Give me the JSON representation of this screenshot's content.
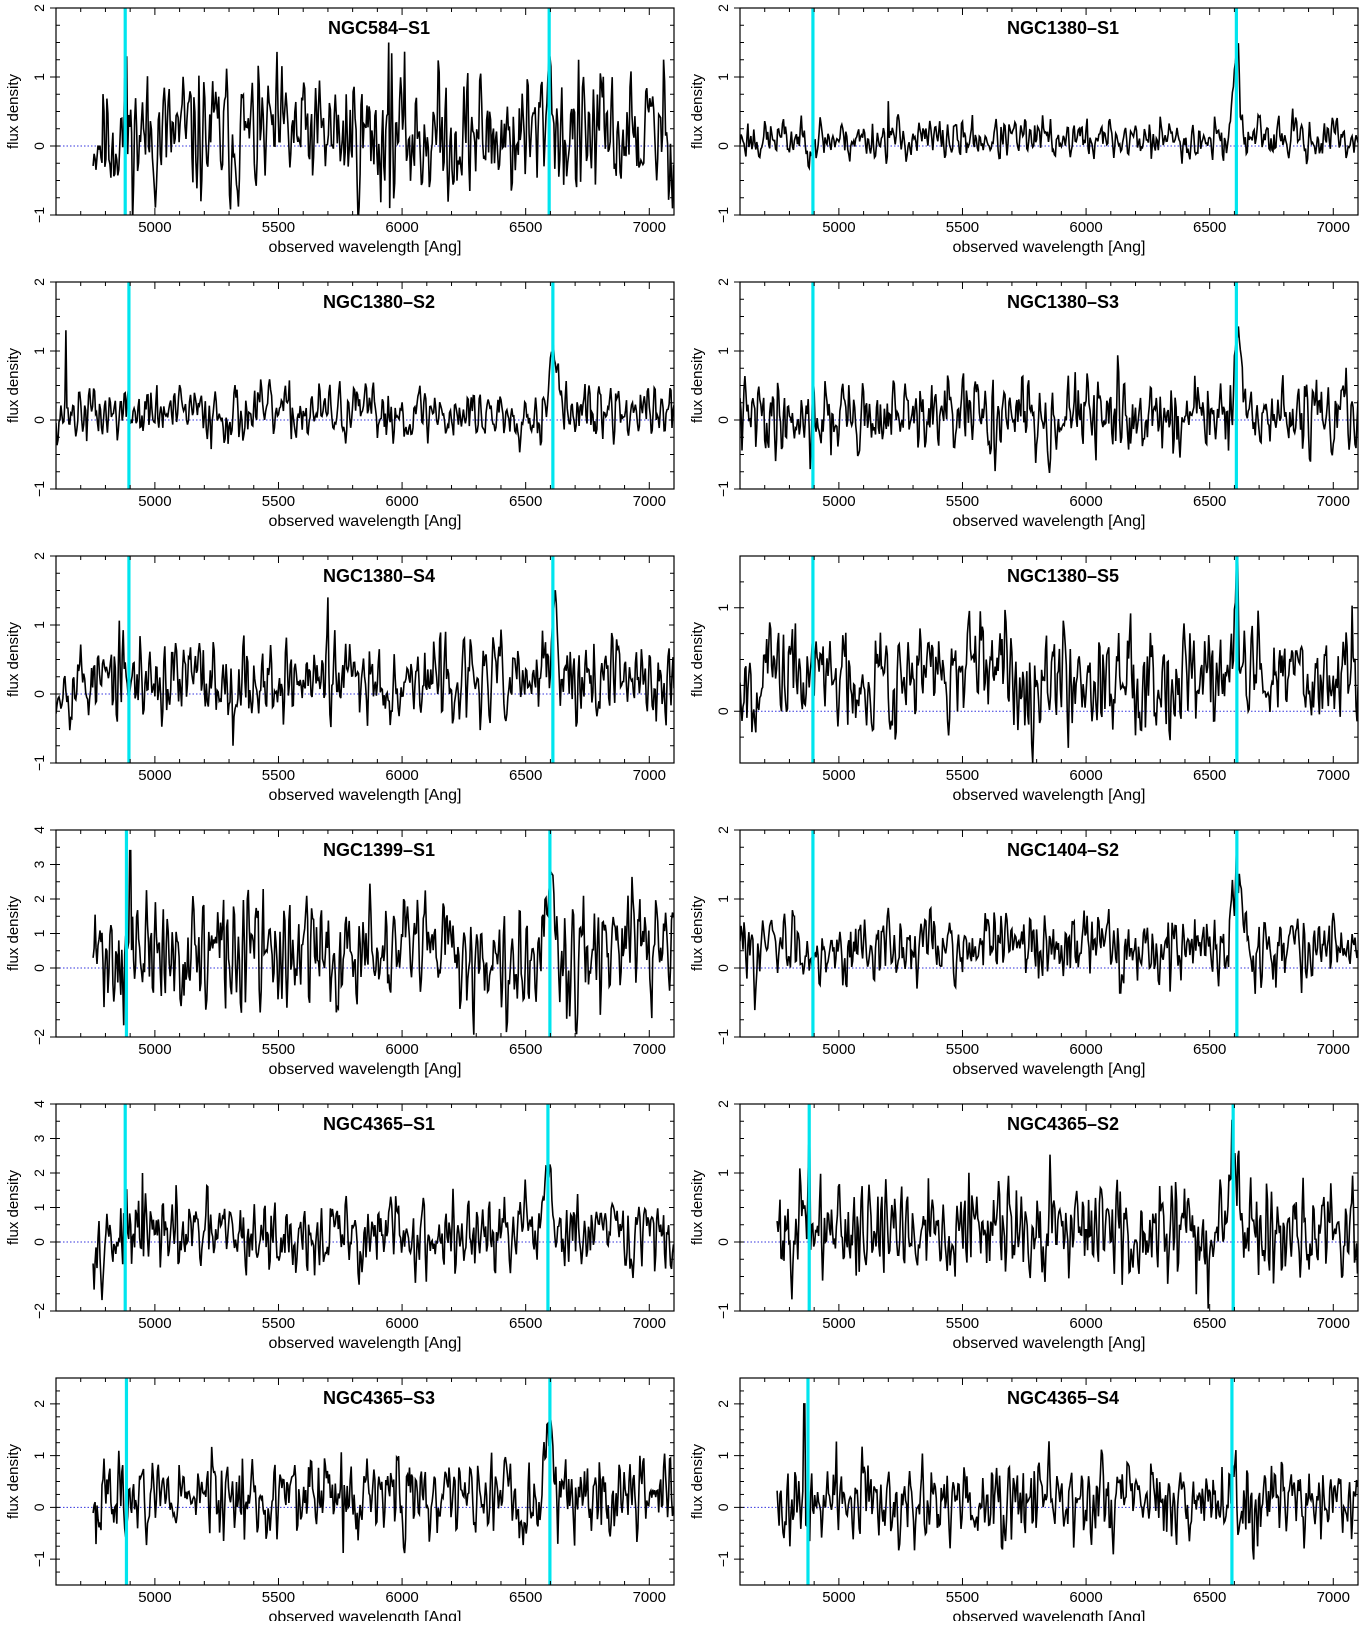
{
  "chart_data": [
    {
      "type": "line",
      "title": "NGC584–S1",
      "xlabel": "observed wavelength [Ang]",
      "ylabel": "flux density",
      "xlim": [
        4600,
        7100
      ],
      "ylim": [
        -1,
        2
      ],
      "yticks": [
        -1,
        0,
        1,
        2
      ],
      "xticks": [
        5000,
        5500,
        6000,
        6500,
        7000
      ],
      "start": 4750,
      "lines": [
        4880,
        6595
      ],
      "peak": {
        "x": 6595,
        "amp": 0.9,
        "w": 15
      },
      "noise": 0.45,
      "base": 0.15,
      "seed": 11,
      "spikes": [
        [
          5945,
          1.5
        ],
        [
          4885,
          1.3
        ]
      ]
    },
    {
      "type": "line",
      "title": "NGC1380–S1",
      "xlabel": "observed wavelength [Ang]",
      "ylabel": "flux density",
      "xlim": [
        4600,
        7100
      ],
      "ylim": [
        -1,
        2
      ],
      "yticks": [
        -1,
        0,
        1,
        2
      ],
      "xticks": [
        5000,
        5500,
        6000,
        6500,
        7000
      ],
      "start": 4600,
      "lines": [
        4895,
        6608
      ],
      "peak": {
        "x": 6608,
        "amp": 1.4,
        "w": 12
      },
      "noise": 0.15,
      "base": 0.1,
      "seed": 23,
      "spikes": [
        [
          5200,
          0.65
        ]
      ]
    },
    {
      "type": "line",
      "title": "NGC1380–S2",
      "xlabel": "observed wavelength [Ang]",
      "ylabel": "flux density",
      "xlim": [
        4600,
        7100
      ],
      "ylim": [
        -1,
        2
      ],
      "yticks": [
        -1,
        0,
        1,
        2
      ],
      "xticks": [
        5000,
        5500,
        6000,
        6500,
        7000
      ],
      "start": 4600,
      "lines": [
        4895,
        6610
      ],
      "peak": {
        "x": 6610,
        "amp": 1.1,
        "w": 15
      },
      "noise": 0.2,
      "base": 0.1,
      "seed": 37,
      "spikes": [
        [
          4640,
          1.3
        ]
      ]
    },
    {
      "type": "line",
      "title": "NGC1380–S3",
      "xlabel": "observed wavelength [Ang]",
      "ylabel": "flux density",
      "xlim": [
        4600,
        7100
      ],
      "ylim": [
        -1,
        2
      ],
      "yticks": [
        -1,
        0,
        1,
        2
      ],
      "xticks": [
        5000,
        5500,
        6000,
        6500,
        7000
      ],
      "start": 4600,
      "lines": [
        4895,
        6608
      ],
      "peak": {
        "x": 6608,
        "amp": 0.9,
        "w": 12
      },
      "noise": 0.27,
      "base": 0.05,
      "seed": 41,
      "spikes": [
        [
          6610,
          1.2
        ]
      ]
    },
    {
      "type": "line",
      "title": "NGC1380–S4",
      "xlabel": "observed wavelength [Ang]",
      "ylabel": "flux density",
      "xlim": [
        4600,
        7100
      ],
      "ylim": [
        -1,
        2
      ],
      "yticks": [
        -1,
        0,
        1,
        2
      ],
      "xticks": [
        5000,
        5500,
        6000,
        6500,
        7000
      ],
      "start": 4600,
      "lines": [
        4895,
        6610
      ],
      "peak": {
        "x": 6610,
        "amp": 1.1,
        "w": 12
      },
      "noise": 0.3,
      "base": 0.2,
      "seed": 53,
      "spikes": [
        [
          5700,
          1.4
        ]
      ]
    },
    {
      "type": "line",
      "title": "NGC1380–S5",
      "xlabel": "observed wavelength [Ang]",
      "ylabel": "flux density",
      "xlim": [
        4600,
        7100
      ],
      "ylim": [
        -0.5,
        1.5
      ],
      "yticks": [
        0,
        1
      ],
      "xticks": [
        5000,
        5500,
        6000,
        6500,
        7000
      ],
      "start": 4600,
      "lines": [
        4895,
        6610
      ],
      "peak": {
        "x": 6610,
        "amp": 0.6,
        "w": 12
      },
      "noise": 0.25,
      "base": 0.35,
      "seed": 67,
      "spikes": [
        [
          6605,
          1.05
        ]
      ]
    },
    {
      "type": "line",
      "title": "NGC1399–S1",
      "xlabel": "observed wavelength [Ang]",
      "ylabel": "flux density",
      "xlim": [
        4600,
        7100
      ],
      "ylim": [
        -2,
        4
      ],
      "yticks": [
        -2,
        0,
        1,
        2,
        3,
        4
      ],
      "xticks": [
        5000,
        5500,
        6000,
        6500,
        7000
      ],
      "start": 4750,
      "lines": [
        4885,
        6598
      ],
      "peak": {
        "x": 6598,
        "amp": 2.5,
        "w": 20
      },
      "noise": 0.8,
      "base": 0.4,
      "seed": 71,
      "spikes": [
        [
          4900,
          3.4
        ]
      ]
    },
    {
      "type": "line",
      "title": "NGC1404–S2",
      "xlabel": "observed wavelength [Ang]",
      "ylabel": "flux density",
      "xlim": [
        4600,
        7100
      ],
      "ylim": [
        -1,
        2
      ],
      "yticks": [
        -1,
        0,
        1,
        2
      ],
      "xticks": [
        5000,
        5500,
        6000,
        6500,
        7000
      ],
      "start": 4600,
      "lines": [
        4895,
        6610
      ],
      "peak": {
        "x": 6610,
        "amp": 1.3,
        "w": 18
      },
      "noise": 0.25,
      "base": 0.3,
      "seed": 83,
      "spikes": []
    },
    {
      "type": "line",
      "title": "NGC4365–S1",
      "xlabel": "observed wavelength [Ang]",
      "ylabel": "flux density",
      "xlim": [
        4600,
        7100
      ],
      "ylim": [
        -2,
        4
      ],
      "yticks": [
        -2,
        0,
        1,
        2,
        3,
        4
      ],
      "xticks": [
        5000,
        5500,
        6000,
        6500,
        7000
      ],
      "start": 4750,
      "lines": [
        4880,
        6590
      ],
      "peak": {
        "x": 6590,
        "amp": 2.3,
        "w": 15
      },
      "noise": 0.55,
      "base": 0.15,
      "seed": 97,
      "spikes": [
        [
          4950,
          2.0
        ]
      ]
    },
    {
      "type": "line",
      "title": "NGC4365–S2",
      "xlabel": "observed wavelength [Ang]",
      "ylabel": "flux density",
      "xlim": [
        4600,
        7100
      ],
      "ylim": [
        -1,
        2
      ],
      "yticks": [
        -1,
        0,
        1,
        2
      ],
      "xticks": [
        5000,
        5500,
        6000,
        6500,
        7000
      ],
      "start": 4750,
      "lines": [
        4880,
        6595
      ],
      "peak": {
        "x": 6595,
        "amp": 1.4,
        "w": 15
      },
      "noise": 0.35,
      "base": 0.2,
      "seed": 101,
      "spikes": [
        [
          4880,
          1.4
        ]
      ]
    },
    {
      "type": "line",
      "title": "NGC4365–S3",
      "xlabel": "observed wavelength [Ang]",
      "ylabel": "flux density",
      "xlim": [
        4600,
        7100
      ],
      "ylim": [
        -1.5,
        2.5
      ],
      "yticks": [
        -1,
        0,
        1,
        2
      ],
      "xticks": [
        5000,
        5500,
        6000,
        6500,
        7000
      ],
      "start": 4750,
      "lines": [
        4885,
        6598
      ],
      "peak": {
        "x": 6598,
        "amp": 1.3,
        "w": 15
      },
      "noise": 0.4,
      "base": 0.2,
      "seed": 113,
      "spikes": [
        [
          6598,
          1.8
        ]
      ]
    },
    {
      "type": "line",
      "title": "NGC4365–S4",
      "xlabel": "observed wavelength [Ang]",
      "ylabel": "flux density",
      "xlim": [
        4600,
        7100
      ],
      "ylim": [
        -1.5,
        2.5
      ],
      "yticks": [
        -1,
        0,
        1,
        2
      ],
      "xticks": [
        5000,
        5500,
        6000,
        6500,
        7000
      ],
      "start": 4750,
      "lines": [
        4875,
        6590
      ],
      "peak": {
        "x": 6590,
        "amp": 0.8,
        "w": 15
      },
      "noise": 0.4,
      "base": 0.1,
      "seed": 127,
      "spikes": [
        [
          4860,
          2.0
        ]
      ]
    }
  ],
  "colors": {
    "spectrum": "#000000",
    "line_marker": "#00e5ee",
    "zero_line": "#3333dd",
    "axes": "#000000"
  }
}
